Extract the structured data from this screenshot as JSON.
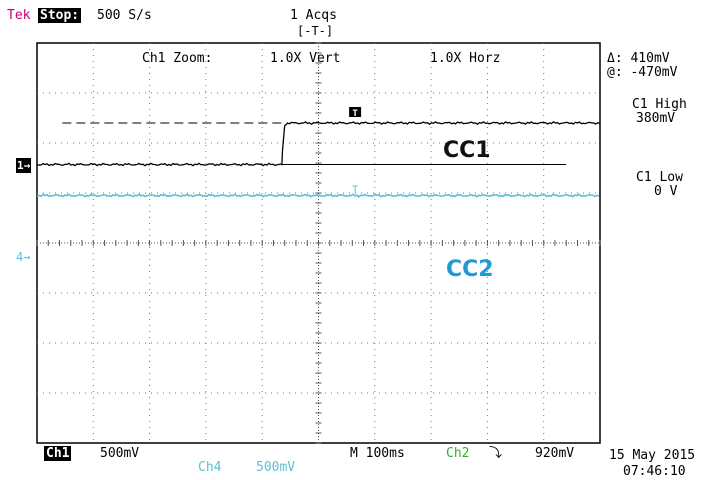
{
  "status": {
    "brand": "Tek",
    "state": "Stop:",
    "rate": "500 S/s",
    "acqs": "1 Acqs",
    "trigger_marker": "[-T-]"
  },
  "zoom": {
    "label": "Ch1 Zoom:",
    "vert": "1.0X Vert",
    "horz": "1.0X Horz"
  },
  "cursor": {
    "delta": "Δ: 410mV",
    "at": "@: -470mV"
  },
  "measurements": [
    {
      "label": "C1 High",
      "value": "380mV"
    },
    {
      "label": "C1 Low",
      "value": "0 V"
    }
  ],
  "markers": {
    "ch1": "1→",
    "ch4": "4→",
    "trig": "T"
  },
  "bottom": {
    "ch1_badge": "Ch1",
    "ch1_scale": "500mV",
    "timebase": "M 100ms",
    "trig_src": "Ch2",
    "trig_slope": "⤵",
    "trig_level": "920mV",
    "ch4_label": "Ch4",
    "ch4_scale": "500mV",
    "date": "15 May 2015",
    "time": "07:46:10"
  },
  "colors": {
    "ch1": "#000000",
    "ch4": "#5bc0d8",
    "ch2": "#3aa83a",
    "cc2_label": "#1e9ad6"
  },
  "chart_data": {
    "type": "line",
    "title": "",
    "annotations": [
      "CC1",
      "CC2"
    ],
    "x_divisions": 10,
    "y_divisions": 8,
    "x_units": "divisions",
    "y_units": "divisions",
    "xlim": [
      0,
      10
    ],
    "ylim": [
      -4,
      4
    ],
    "grid": true,
    "series": [
      {
        "name": "CC1",
        "x": [
          0,
          4.35,
          4.36,
          4.4,
          4.45,
          10
        ],
        "y": [
          1.57,
          1.57,
          1.85,
          2.35,
          2.4,
          2.4
        ]
      },
      {
        "name": "CC2",
        "x": [
          0,
          10
        ],
        "y": [
          0.95,
          0.95
        ]
      }
    ],
    "reference_lines": [
      {
        "y": 2.4,
        "x_from": 0.45,
        "x_to": 4.35,
        "style": "dashed"
      },
      {
        "y": 1.57,
        "x_from": 4.35,
        "x_to": 9.4,
        "style": "solid"
      }
    ]
  }
}
